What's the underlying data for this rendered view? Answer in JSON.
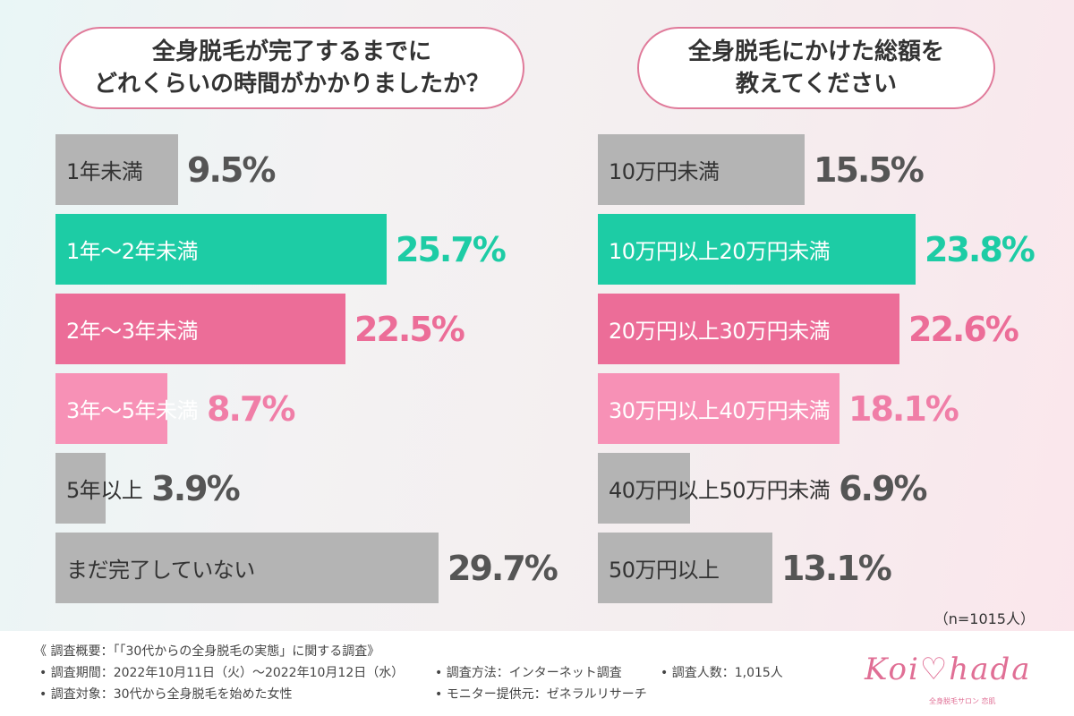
{
  "chart_data": [
    {
      "type": "bar",
      "title": "全身脱毛が完了するまでに\nどれくらいの時間がかかりましたか？",
      "categories": [
        "1年未満",
        "1年〜2年未満",
        "2年〜3年未満",
        "3年〜5年未満",
        "5年以上",
        "まだ完了していない"
      ],
      "values": [
        9.5,
        25.7,
        22.5,
        8.7,
        3.9,
        29.7
      ],
      "value_labels": [
        "9.5%",
        "25.7%",
        "22.5%",
        "8.7%",
        "3.9%",
        "29.7%"
      ],
      "colors": [
        "#b4b4b4",
        "#1dcca5",
        "#ec6d98",
        "#f791b6",
        "#b4b4b4",
        "#b4b4b4"
      ],
      "value_colors": [
        "#555555",
        "#1dcca5",
        "#ec6d98",
        "#f07ea7",
        "#555555",
        "#555555"
      ],
      "label_colors": [
        "#333333",
        "#ffffff",
        "#ffffff",
        "#ffffff",
        "#333333",
        "#333333"
      ],
      "xlim": [
        0,
        29.7
      ],
      "orientation": "horizontal"
    },
    {
      "type": "bar",
      "title": "全身脱毛にかけた総額を\n教えてください",
      "categories": [
        "10万円未満",
        "10万円以上20万円未満",
        "20万円以上30万円未満",
        "30万円以上40万円未満",
        "40万円以上50万円未満",
        "50万円以上"
      ],
      "values": [
        15.5,
        23.8,
        22.6,
        18.1,
        6.9,
        13.1
      ],
      "value_labels": [
        "15.5%",
        "23.8%",
        "22.6%",
        "18.1%",
        "6.9%",
        "13.1%"
      ],
      "colors": [
        "#b4b4b4",
        "#1dcca5",
        "#ec6d98",
        "#f791b6",
        "#b4b4b4",
        "#b4b4b4"
      ],
      "value_colors": [
        "#555555",
        "#1dcca5",
        "#ec6d98",
        "#f07ea7",
        "#555555",
        "#555555"
      ],
      "label_colors": [
        "#333333",
        "#ffffff",
        "#ffffff",
        "#ffffff",
        "#333333",
        "#333333"
      ],
      "xlim": [
        0,
        23.8
      ],
      "orientation": "horizontal"
    }
  ],
  "sample_note": "（n=1015人）",
  "footer": {
    "overview": "《 調査概要：「「30代からの全身脱毛の実態」に関する調査》",
    "period": "• 調査期間：2022年10月11日（火）〜2022年10月12日（水）",
    "target": "• 調査対象：30代から全身脱毛を始めた女性",
    "method": "• 調査方法：インターネット調査",
    "provider": "• モニター提供元：ゼネラルリサーチ",
    "count": "• 調査人数：1,015人"
  },
  "logo": {
    "text": "Koi♡hada",
    "sub": "全身脱毛サロン 恋肌"
  }
}
